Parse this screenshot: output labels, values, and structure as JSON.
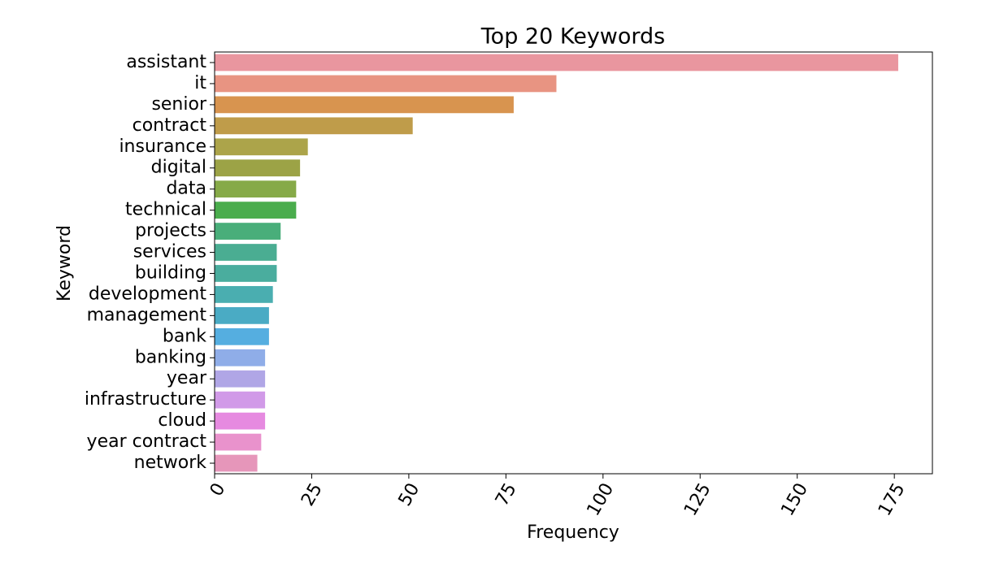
{
  "chart_data": {
    "type": "barh",
    "title": "Top 20 Keywords",
    "x_label": "Frequency",
    "y_label": "Keyword",
    "categories": [
      "assistant",
      "it",
      "senior",
      "contract",
      "insurance",
      "digital",
      "data",
      "technical",
      "projects",
      "services",
      "building",
      "development",
      "management",
      "bank",
      "banking",
      "year",
      "infrastructure",
      "cloud",
      "year contract",
      "network"
    ],
    "values": [
      176,
      88,
      77,
      51,
      24,
      22,
      21,
      21,
      17,
      16,
      16,
      15,
      14,
      14,
      13,
      13,
      13,
      13,
      12,
      11
    ],
    "colors": [
      "#e9969f",
      "#e89482",
      "#d8944f",
      "#bf9c4a",
      "#aca44a",
      "#9ca346",
      "#86aa48",
      "#4aad4d",
      "#49ae7a",
      "#4aad92",
      "#4aad9e",
      "#4aaeb0",
      "#4aabc4",
      "#55aee0",
      "#8fade8",
      "#b0a6e6",
      "#d19ae8",
      "#e68ae0",
      "#e992cc",
      "#e696ba"
    ],
    "xlim": [
      0,
      184.8
    ],
    "xticks": [
      0,
      25,
      50,
      75,
      100,
      125,
      150,
      175
    ]
  }
}
